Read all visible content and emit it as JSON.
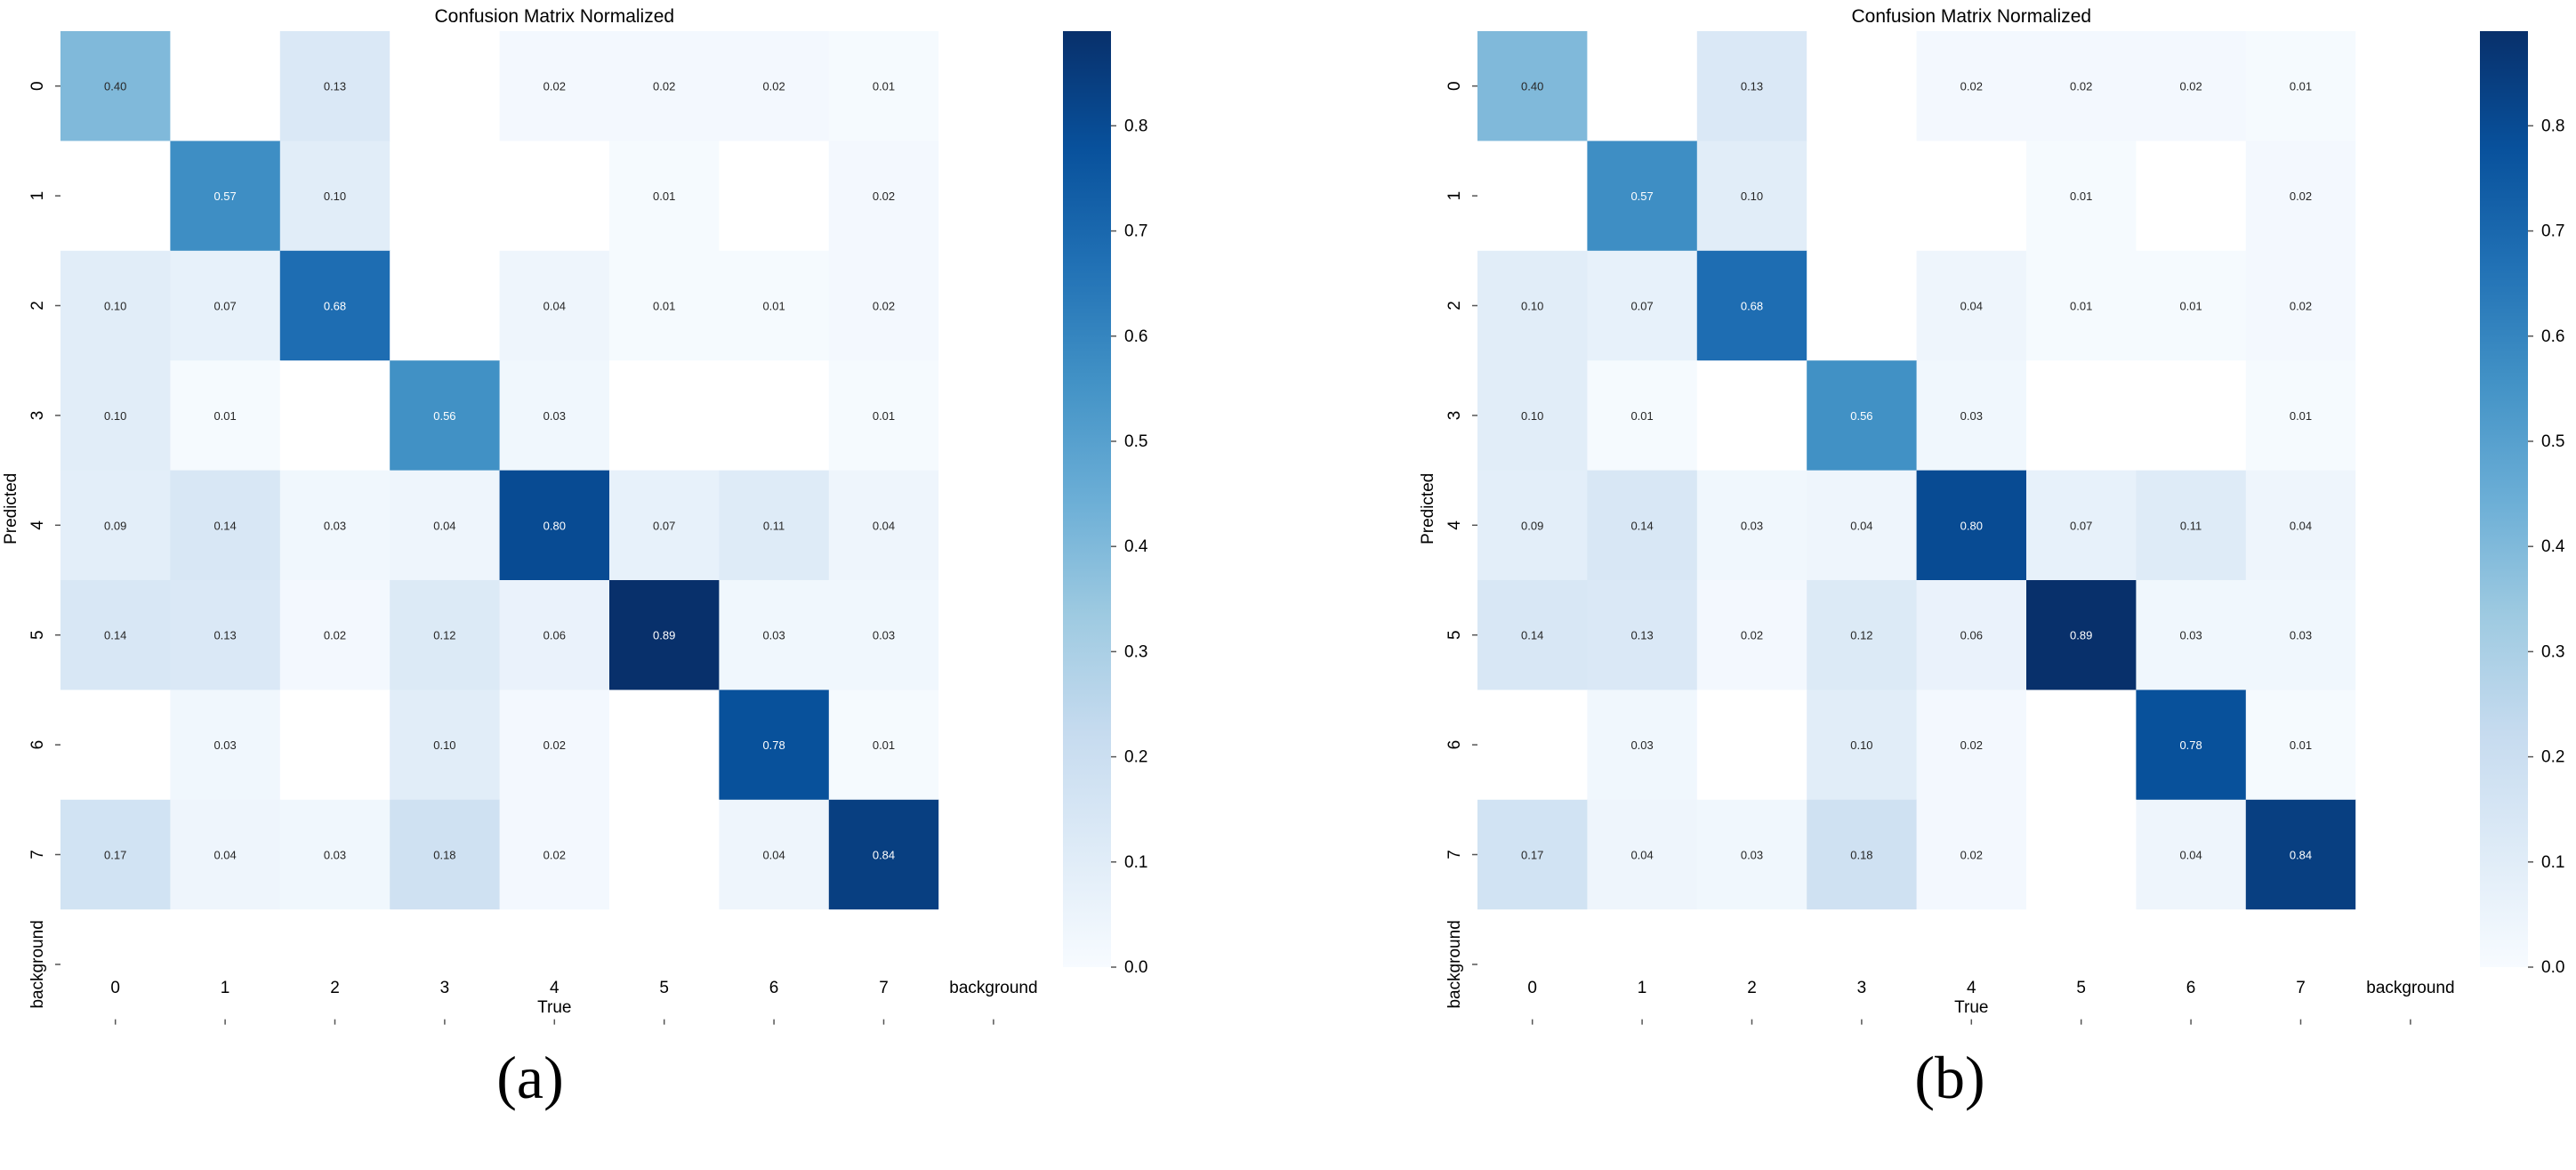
{
  "panels": [
    {
      "label": "(a)",
      "chart_data": {
        "type": "heatmap",
        "title": "Confusion Matrix Normalized",
        "xlabel": "True",
        "ylabel": "Predicted",
        "x_categories": [
          "0",
          "1",
          "2",
          "3",
          "4",
          "5",
          "6",
          "7",
          "background"
        ],
        "y_categories": [
          "0",
          "1",
          "2",
          "3",
          "4",
          "5",
          "6",
          "7",
          "background"
        ],
        "values": [
          [
            0.4,
            0,
            0.13,
            0,
            0.02,
            0.02,
            0.02,
            0.01,
            0
          ],
          [
            0,
            0.57,
            0.1,
            0,
            0,
            0.01,
            0,
            0.02,
            0
          ],
          [
            0.1,
            0.07,
            0.68,
            0,
            0.04,
            0.01,
            0.01,
            0.02,
            0
          ],
          [
            0.1,
            0.01,
            0,
            0.56,
            0.03,
            0,
            0,
            0.01,
            0
          ],
          [
            0.09,
            0.14,
            0.03,
            0.04,
            0.8,
            0.07,
            0.11,
            0.04,
            0
          ],
          [
            0.14,
            0.13,
            0.02,
            0.12,
            0.06,
            0.89,
            0.03,
            0.03,
            0
          ],
          [
            0,
            0.03,
            0,
            0.1,
            0.02,
            0,
            0.78,
            0.01,
            0
          ],
          [
            0.17,
            0.04,
            0.03,
            0.18,
            0.02,
            0,
            0.04,
            0.84,
            0
          ],
          [
            0,
            0,
            0,
            0,
            0,
            0,
            0,
            0,
            0
          ]
        ],
        "colorbar": {
          "min": 0.0,
          "max": 0.89,
          "ticks": [
            "0.0",
            "0.1",
            "0.2",
            "0.3",
            "0.4",
            "0.5",
            "0.6",
            "0.7",
            "0.8"
          ]
        },
        "colormap": [
          "#f7fbff",
          "#deebf7",
          "#c6dbef",
          "#9ecae1",
          "#6baed6",
          "#4292c6",
          "#2171b5",
          "#08519c",
          "#08306b"
        ]
      }
    },
    {
      "label": "(b)",
      "chart_data": {
        "type": "heatmap",
        "title": "Confusion Matrix Normalized",
        "xlabel": "True",
        "ylabel": "Predicted",
        "x_categories": [
          "0",
          "1",
          "2",
          "3",
          "4",
          "5",
          "6",
          "7",
          "background"
        ],
        "y_categories": [
          "0",
          "1",
          "2",
          "3",
          "4",
          "5",
          "6",
          "7",
          "background"
        ],
        "values": [
          [
            0.4,
            0,
            0.13,
            0,
            0.02,
            0.02,
            0.02,
            0.01,
            0
          ],
          [
            0,
            0.57,
            0.1,
            0,
            0,
            0.01,
            0,
            0.02,
            0
          ],
          [
            0.1,
            0.07,
            0.68,
            0,
            0.04,
            0.01,
            0.01,
            0.02,
            0
          ],
          [
            0.1,
            0.01,
            0,
            0.56,
            0.03,
            0,
            0,
            0.01,
            0
          ],
          [
            0.09,
            0.14,
            0.03,
            0.04,
            0.8,
            0.07,
            0.11,
            0.04,
            0
          ],
          [
            0.14,
            0.13,
            0.02,
            0.12,
            0.06,
            0.89,
            0.03,
            0.03,
            0
          ],
          [
            0,
            0.03,
            0,
            0.1,
            0.02,
            0,
            0.78,
            0.01,
            0
          ],
          [
            0.17,
            0.04,
            0.03,
            0.18,
            0.02,
            0,
            0.04,
            0.84,
            0
          ],
          [
            0,
            0,
            0,
            0,
            0,
            0,
            0,
            0,
            0
          ]
        ],
        "colorbar": {
          "min": 0.0,
          "max": 0.89,
          "ticks": [
            "0.0",
            "0.1",
            "0.2",
            "0.3",
            "0.4",
            "0.5",
            "0.6",
            "0.7",
            "0.8"
          ]
        },
        "colormap": [
          "#f7fbff",
          "#deebf7",
          "#c6dbef",
          "#9ecae1",
          "#6baed6",
          "#4292c6",
          "#2171b5",
          "#08519c",
          "#08306b"
        ]
      }
    }
  ]
}
